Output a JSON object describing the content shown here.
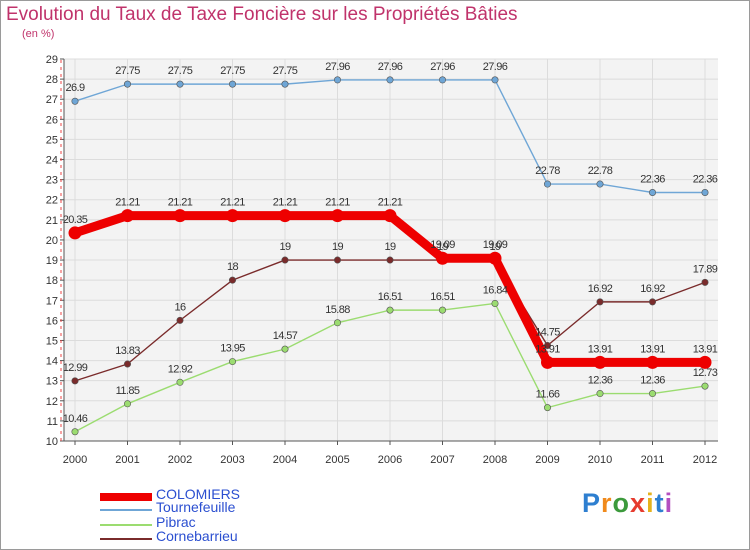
{
  "title": "Evolution du Taux de Taxe Foncière sur les Propriétés Bâties",
  "subtitle": "(en %)",
  "logo": {
    "letters": [
      "P",
      "r",
      "o",
      "x",
      "i",
      "t",
      "i"
    ],
    "colors": [
      "#2e7fd0",
      "#f08a1c",
      "#3c9a3c",
      "#e63b2e",
      "#e6b21c",
      "#2e7fd0",
      "#b44fc0"
    ]
  },
  "chart_data": {
    "type": "line",
    "title": "Evolution du Taux de Taxe Foncière sur les Propriétés Bâties",
    "ylabel": "(en %)",
    "xlabel": "",
    "ylim": [
      10,
      29
    ],
    "grid": true,
    "categories": [
      "2000",
      "2001",
      "2002",
      "2003",
      "2004",
      "2005",
      "2006",
      "2007",
      "2008",
      "2009",
      "2010",
      "2011",
      "2012"
    ],
    "yticks": [
      "10",
      "11",
      "12",
      "13",
      "14",
      "15",
      "16",
      "17",
      "18",
      "19",
      "20",
      "21",
      "22",
      "23",
      "24",
      "25",
      "26",
      "27",
      "28",
      "29"
    ],
    "legend_position": "bottom-left",
    "series": [
      {
        "name": "COLOMIERS",
        "color": "#ee0000",
        "values": [
          20.35,
          21.21,
          21.21,
          21.21,
          21.21,
          21.21,
          21.21,
          19.09,
          19.09,
          13.91,
          13.91,
          13.91,
          13.91
        ],
        "labels": [
          "20.35",
          "21.21",
          "21.21",
          "21.21",
          "21.21",
          "21.21",
          "21.21",
          "19.09",
          "19.09",
          "13.91",
          "13.91",
          "13.91",
          "13.91"
        ]
      },
      {
        "name": "Tournefeuille",
        "color": "#6fa6d6",
        "values": [
          26.9,
          27.75,
          27.75,
          27.75,
          27.75,
          27.96,
          27.96,
          27.96,
          27.96,
          22.78,
          22.78,
          22.36,
          22.36
        ],
        "labels": [
          "26.9",
          "27.75",
          "27.75",
          "27.75",
          "27.75",
          "27.96",
          "27.96",
          "27.96",
          "27.96",
          "22.78",
          "22.78",
          "22.36",
          "22.36"
        ]
      },
      {
        "name": "Pibrac",
        "color": "#9bdc70",
        "values": [
          10.46,
          11.85,
          12.92,
          13.95,
          14.57,
          15.88,
          16.51,
          16.51,
          16.84,
          11.66,
          12.36,
          12.36,
          12.73
        ],
        "labels": [
          "10.46",
          "11.85",
          "12.92",
          "13.95",
          "14.57",
          "15.88",
          "16.51",
          "16.51",
          "16.84",
          "11.66",
          "12.36",
          "12.36",
          "12.73"
        ]
      },
      {
        "name": "Cornebarrieu",
        "color": "#7a2b2b",
        "values": [
          12.99,
          13.83,
          16,
          18,
          19,
          19,
          19,
          19,
          19,
          14.75,
          16.92,
          16.92,
          17.89
        ],
        "labels": [
          "12.99",
          "13.83",
          "16",
          "18",
          "19",
          "19",
          "19",
          "19",
          "19",
          "14.75",
          "16.92",
          "16.92",
          "17.89"
        ]
      }
    ]
  }
}
